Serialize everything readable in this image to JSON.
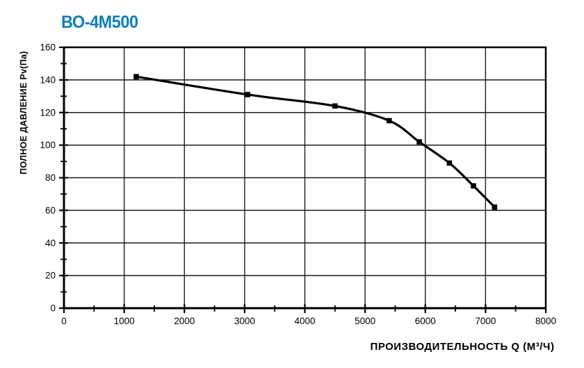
{
  "title": {
    "text": "ВО-4М500",
    "color": "#0e7dc2"
  },
  "chart_data": {
    "type": "line",
    "title": "ВО-4М500",
    "xlabel": "ПРОИЗВОДИТЕЛЬНОСТЬ  Q  (М³/Ч)",
    "ylabel": "ПОЛНОЕ ДАВЛЕНИЕ  Pv(Па)",
    "xlim": [
      0,
      8000
    ],
    "ylim": [
      0,
      160
    ],
    "x_tick_values": [
      0,
      1000,
      2000,
      3000,
      4000,
      5000,
      6000,
      7000,
      8000
    ],
    "x_tick_labels": [
      "0",
      "1000",
      "2000",
      "3000",
      "4000",
      "5000",
      "6000",
      "7000",
      "8000"
    ],
    "x_minor_step": 500,
    "y_tick_values": [
      0,
      20,
      40,
      60,
      80,
      100,
      120,
      140,
      160
    ],
    "y_tick_labels": [
      "0",
      "20",
      "40",
      "60",
      "80",
      "100",
      "120",
      "140",
      "160"
    ],
    "y_minor_step": 10,
    "grid": true,
    "legend_position": "none",
    "line_color": "#000000",
    "grid_color": "#1a1a1a",
    "marker": "square",
    "series": [
      {
        "name": "ВО-4М500",
        "points": [
          {
            "q": 1200,
            "pv": 142
          },
          {
            "q": 3050,
            "pv": 131
          },
          {
            "q": 4500,
            "pv": 124
          },
          {
            "q": 5400,
            "pv": 115
          },
          {
            "q": 5900,
            "pv": 102
          },
          {
            "q": 6400,
            "pv": 89
          },
          {
            "q": 6800,
            "pv": 75
          },
          {
            "q": 7150,
            "pv": 62
          }
        ]
      }
    ]
  }
}
